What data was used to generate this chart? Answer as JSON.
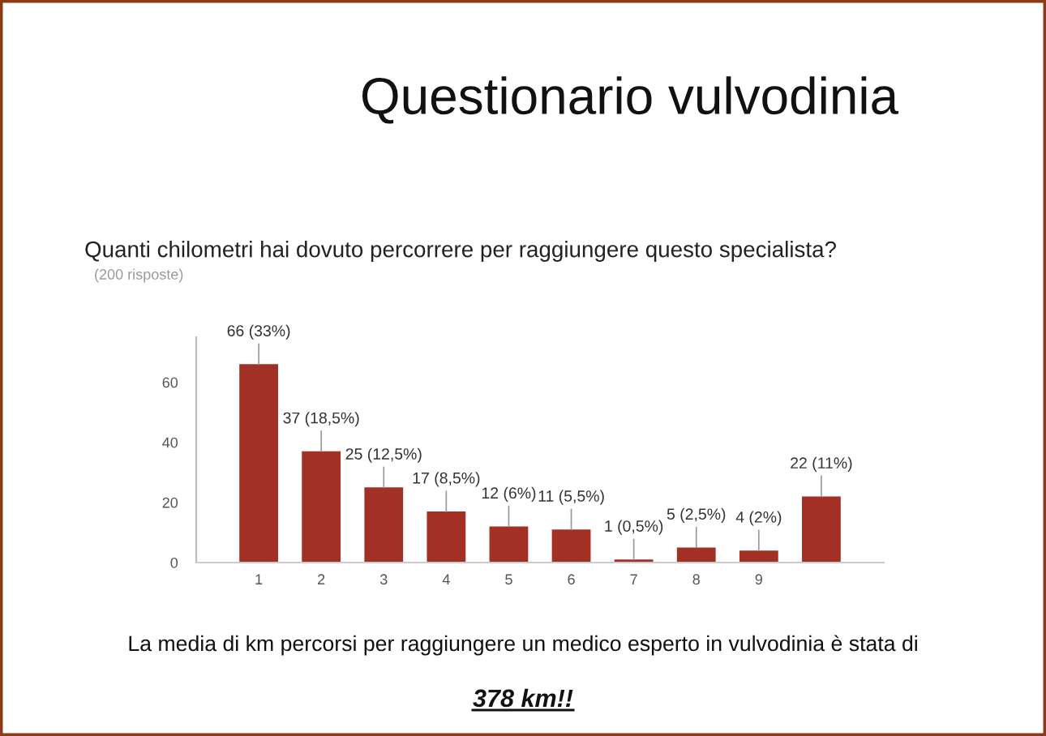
{
  "chart_data": {
    "type": "bar",
    "title": "Questionario vulvodinia",
    "subtitle": "Quanti chilometri hai dovuto percorrere per raggiungere questo specialista?",
    "annotations": [
      "(200 risposte)",
      "La media di km percorsi per raggiungere un medico esperto in vulvodinia è stata di",
      "378 km!!"
    ],
    "categories": [
      null,
      "1",
      "2",
      "3",
      "4",
      "5",
      "6",
      "7",
      "8",
      "9",
      null,
      null
    ],
    "values": [
      null,
      66,
      37,
      25,
      17,
      12,
      11,
      1,
      5,
      4,
      22,
      null
    ],
    "value_labels": [
      null,
      "66 (33%)",
      "37 (18,5%)",
      "25 (12,5%)",
      "17 (8,5%)",
      "12 (6%)",
      "11 (5,5%)",
      "1 (0,5%)",
      "5 (2,5%)",
      "4 (2%)",
      "22 (11%)",
      null
    ],
    "color": "#a33025",
    "ylim": [
      0,
      75
    ],
    "yticks": [
      0,
      20,
      40,
      60
    ]
  }
}
